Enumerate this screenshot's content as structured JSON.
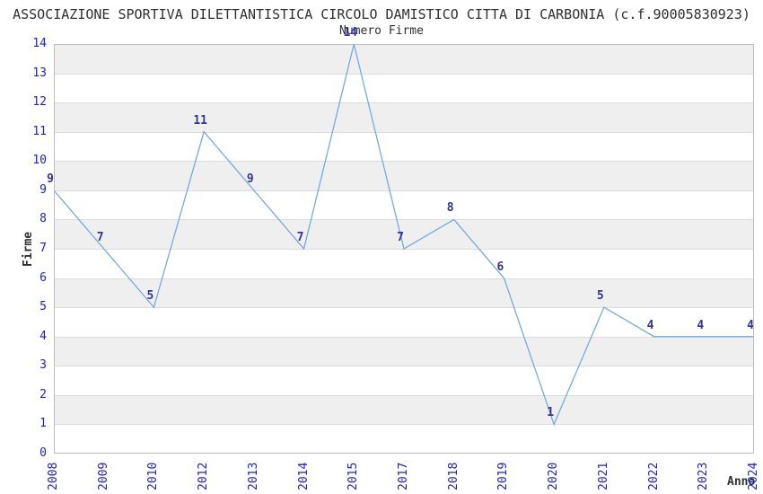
{
  "chart": {
    "title": "ASSOCIAZIONE SPORTIVA DILETTANTISTICA CIRCOLO DAMISTICO CITTA DI CARBONIA (c.f.90005830923)",
    "subtitle": "Numero Firme",
    "y_axis_title": "Firme",
    "x_axis_title": "Anno"
  },
  "chart_data": {
    "type": "line",
    "title": "Numero Firme",
    "xlabel": "Anno",
    "ylabel": "Firme",
    "categories": [
      "2008",
      "2009",
      "2010",
      "2012",
      "2013",
      "2014",
      "2015",
      "2017",
      "2018",
      "2019",
      "2020",
      "2021",
      "2022",
      "2023",
      "2024"
    ],
    "values": [
      9,
      7,
      5,
      11,
      9,
      7,
      14,
      7,
      8,
      6,
      1,
      5,
      4,
      4,
      4
    ],
    "point_labels": [
      "9",
      "7",
      "5",
      "11",
      "9",
      "7",
      "14",
      "7",
      "8",
      "6",
      "1",
      "5",
      "4",
      "4",
      "4"
    ],
    "ylim": [
      0,
      14
    ],
    "yticks": [
      0,
      1,
      2,
      3,
      4,
      5,
      6,
      7,
      8,
      9,
      10,
      11,
      12,
      13,
      14
    ],
    "grid": "horizontal-bands",
    "legend": "none",
    "colors": {
      "line": "#6FA8E0",
      "tick_label": "#2020CC",
      "point_label": "#333399",
      "band": "#EFEFEF",
      "gridline": "#DCDCDC",
      "plot_border": "#BDBDBD",
      "title_text": "#303030"
    }
  }
}
